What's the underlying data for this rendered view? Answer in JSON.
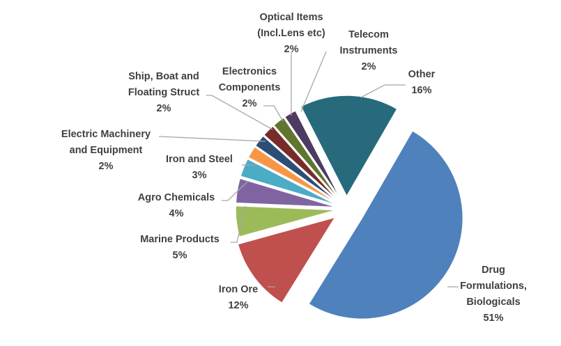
{
  "chart_data": {
    "type": "pie",
    "title": "",
    "slices": [
      {
        "label": "Drug Formulations, Biologicals",
        "label_lines": [
          "Drug",
          "Formulations,",
          "Biologicals"
        ],
        "value": 51,
        "value_label": "51%",
        "color": "#4f81bd"
      },
      {
        "label": "Iron Ore",
        "label_lines": [
          "Iron Ore"
        ],
        "value": 12,
        "value_label": "12%",
        "color": "#c0504d"
      },
      {
        "label": "Marine Products",
        "label_lines": [
          "Marine Products"
        ],
        "value": 5,
        "value_label": "5%",
        "color": "#9bbb59"
      },
      {
        "label": "Agro Chemicals",
        "label_lines": [
          "Agro Chemicals"
        ],
        "value": 4,
        "value_label": "4%",
        "color": "#8064a2"
      },
      {
        "label": "Iron and Steel",
        "label_lines": [
          "Iron and Steel"
        ],
        "value": 3,
        "value_label": "3%",
        "color": "#4bacc6"
      },
      {
        "label": "Electric Machinery and Equipment",
        "label_lines": [
          "Electric Machinery",
          "and Equipment"
        ],
        "value": 2,
        "value_label": "2%",
        "color": "#f79646"
      },
      {
        "label": "Ship, Boat and Floating Struct",
        "label_lines": [
          "Ship, Boat and",
          "Floating Struct"
        ],
        "value": 2,
        "value_label": "2%",
        "color": "#2c4d75"
      },
      {
        "label": "Electronics Components",
        "label_lines": [
          "Electronics",
          "Components"
        ],
        "value": 2,
        "value_label": "2%",
        "color": "#772c2a"
      },
      {
        "label": "Optical Items (Incl.Lens etc)",
        "label_lines": [
          "Optical Items",
          "(Incl.Lens etc)"
        ],
        "value": 2,
        "value_label": "2%",
        "color": "#5f7530"
      },
      {
        "label": "Telecom Instruments",
        "label_lines": [
          "Telecom",
          "Instruments"
        ],
        "value": 2,
        "value_label": "2%",
        "color": "#4d3b62"
      },
      {
        "label": "Other",
        "label_lines": [
          "Other"
        ],
        "value": 16,
        "value_label": "16%",
        "color": "#276a7c"
      }
    ]
  }
}
